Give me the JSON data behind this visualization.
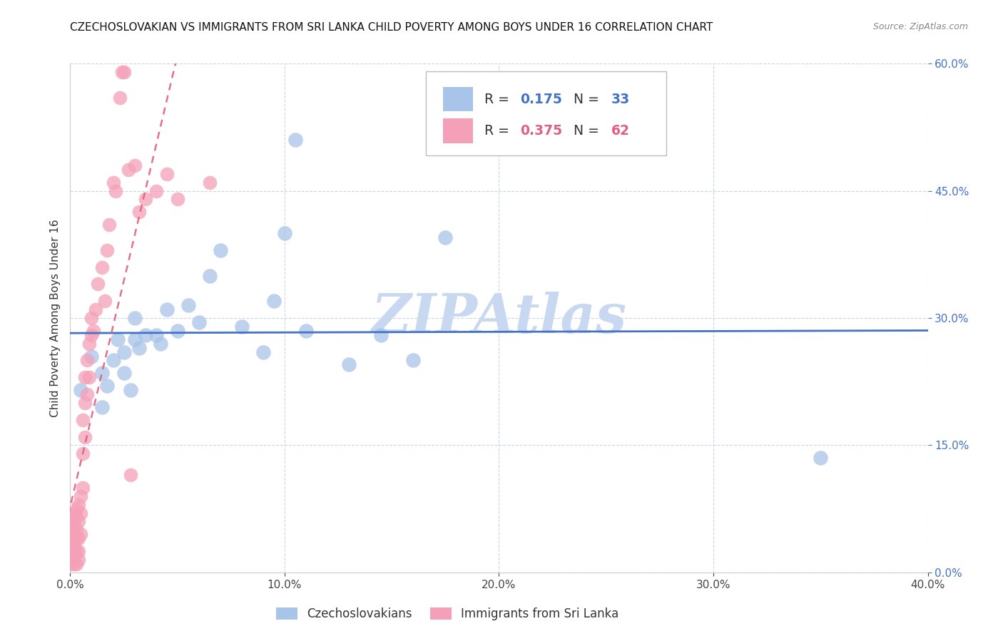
{
  "title": "CZECHOSLOVAKIAN VS IMMIGRANTS FROM SRI LANKA CHILD POVERTY AMONG BOYS UNDER 16 CORRELATION CHART",
  "source": "Source: ZipAtlas.com",
  "ylabel": "Child Poverty Among Boys Under 16",
  "xlim": [
    0.0,
    0.4
  ],
  "ylim": [
    0.0,
    0.6
  ],
  "xticks": [
    0.0,
    0.1,
    0.2,
    0.3,
    0.4
  ],
  "yticks": [
    0.0,
    0.15,
    0.3,
    0.45,
    0.6
  ],
  "blue_color": "#a8c4e8",
  "pink_color": "#f4a0b8",
  "blue_line_color": "#4472c4",
  "pink_line_color": "#e06080",
  "axis_color": "#4472c4",
  "watermark": "ZIPAtlas",
  "legend_R_blue": "0.175",
  "legend_N_blue": "33",
  "legend_R_pink": "0.375",
  "legend_N_pink": "62",
  "blue_scatter_x": [
    0.005,
    0.01,
    0.015,
    0.015,
    0.017,
    0.02,
    0.022,
    0.025,
    0.025,
    0.028,
    0.03,
    0.03,
    0.032,
    0.035,
    0.04,
    0.042,
    0.045,
    0.05,
    0.055,
    0.06,
    0.065,
    0.07,
    0.08,
    0.09,
    0.095,
    0.1,
    0.105,
    0.11,
    0.13,
    0.145,
    0.16,
    0.175,
    0.35
  ],
  "blue_scatter_y": [
    0.215,
    0.255,
    0.235,
    0.195,
    0.22,
    0.25,
    0.275,
    0.26,
    0.235,
    0.215,
    0.275,
    0.3,
    0.265,
    0.28,
    0.28,
    0.27,
    0.31,
    0.285,
    0.315,
    0.295,
    0.35,
    0.38,
    0.29,
    0.26,
    0.32,
    0.4,
    0.51,
    0.285,
    0.245,
    0.28,
    0.25,
    0.395,
    0.135
  ],
  "pink_scatter_x": [
    0.0,
    0.0,
    0.0,
    0.001,
    0.001,
    0.001,
    0.001,
    0.001,
    0.001,
    0.002,
    0.002,
    0.002,
    0.002,
    0.002,
    0.002,
    0.003,
    0.003,
    0.003,
    0.003,
    0.003,
    0.003,
    0.004,
    0.004,
    0.004,
    0.004,
    0.004,
    0.005,
    0.005,
    0.005,
    0.006,
    0.006,
    0.006,
    0.007,
    0.007,
    0.007,
    0.008,
    0.008,
    0.009,
    0.009,
    0.01,
    0.01,
    0.011,
    0.012,
    0.013,
    0.015,
    0.016,
    0.017,
    0.018,
    0.02,
    0.021,
    0.023,
    0.024,
    0.025,
    0.027,
    0.028,
    0.03,
    0.032,
    0.035,
    0.04,
    0.045,
    0.05,
    0.065
  ],
  "pink_scatter_y": [
    0.03,
    0.05,
    0.01,
    0.035,
    0.055,
    0.015,
    0.04,
    0.065,
    0.02,
    0.045,
    0.01,
    0.03,
    0.055,
    0.02,
    0.07,
    0.01,
    0.04,
    0.065,
    0.025,
    0.05,
    0.075,
    0.015,
    0.04,
    0.06,
    0.08,
    0.025,
    0.045,
    0.07,
    0.09,
    0.1,
    0.14,
    0.18,
    0.16,
    0.2,
    0.23,
    0.21,
    0.25,
    0.27,
    0.23,
    0.28,
    0.3,
    0.285,
    0.31,
    0.34,
    0.36,
    0.32,
    0.38,
    0.41,
    0.46,
    0.45,
    0.56,
    0.59,
    0.59,
    0.475,
    0.115,
    0.48,
    0.425,
    0.44,
    0.45,
    0.47,
    0.44,
    0.46
  ],
  "background_color": "#ffffff",
  "grid_color": "#c8d4e8",
  "title_fontsize": 11,
  "source_fontsize": 9,
  "axis_label_fontsize": 11,
  "tick_fontsize": 11,
  "watermark_color": "#c8d8f0",
  "watermark_fontsize": 55
}
